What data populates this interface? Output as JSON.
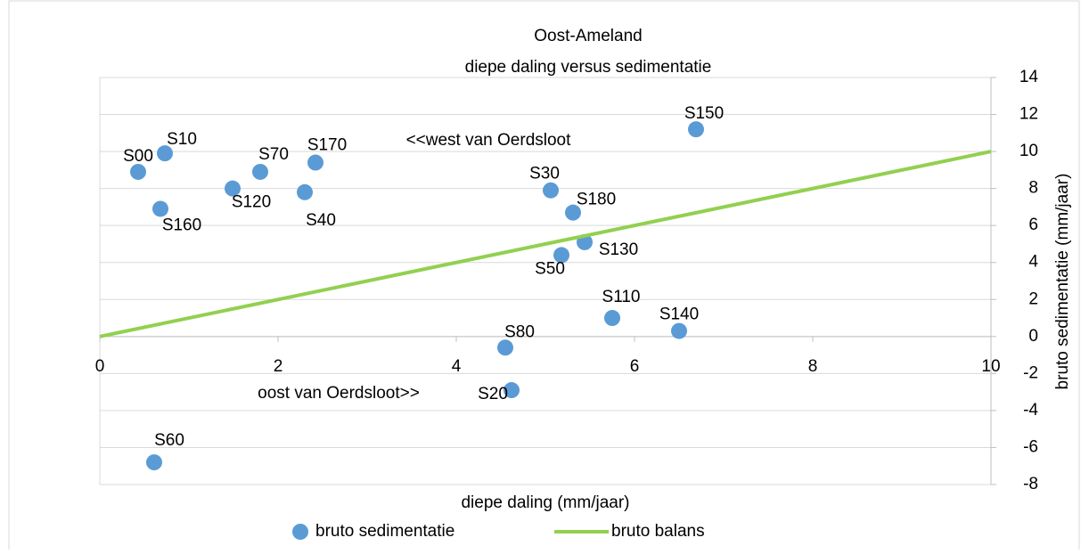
{
  "chart_data": {
    "type": "scatter",
    "title": "Oost-Ameland",
    "subtitle": "diepe daling versus sedimentatie",
    "x_label": "diepe daling (mm/jaar)",
    "y_label": "bruto sedimentatie (mm/jaar)",
    "annotations": [
      "<<west van Oerdsloot",
      "oost van Oerdsloot>>"
    ],
    "xlim": [
      0,
      10
    ],
    "xticks": [
      0,
      2,
      4,
      6,
      8,
      10
    ],
    "ylim": [
      -8,
      14
    ],
    "yticks": [
      -8,
      -6,
      -4,
      -2,
      0,
      2,
      4,
      6,
      8,
      10,
      12,
      14
    ],
    "grid": true,
    "legend": "bottom",
    "series": [
      {
        "name": "bruto sedimentatie",
        "type": "scatter",
        "color": "#5b9bd5",
        "point_labels": [
          "S00",
          "S10",
          "S160",
          "S120",
          "S70",
          "S40",
          "S170",
          "S30",
          "S180",
          "S130",
          "S50",
          "S110",
          "S140",
          "S150",
          "S80",
          "S20",
          "S60"
        ],
        "x": [
          0.43,
          0.73,
          0.68,
          1.49,
          1.8,
          2.3,
          2.42,
          5.06,
          5.31,
          5.44,
          5.18,
          5.75,
          6.5,
          6.69,
          4.55,
          4.62,
          0.61
        ],
        "values": [
          8.9,
          9.9,
          6.9,
          8.0,
          8.9,
          7.8,
          9.4,
          7.9,
          6.7,
          5.1,
          4.4,
          1.0,
          0.3,
          11.2,
          -0.6,
          -2.9,
          -6.8
        ]
      },
      {
        "name": "bruto balans",
        "type": "line",
        "color": "#92d050",
        "x": [
          0,
          10
        ],
        "values": [
          0,
          10
        ]
      }
    ]
  }
}
